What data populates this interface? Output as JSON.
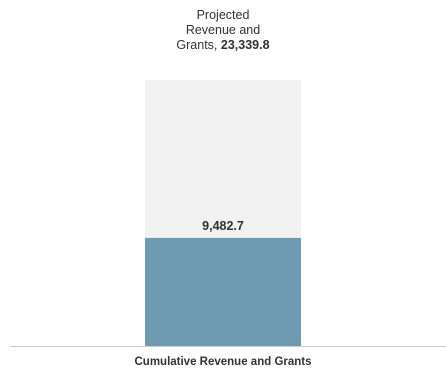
{
  "chart_data": {
    "type": "bar",
    "categories": [
      "Cumulative Revenue and Grants"
    ],
    "series": [
      {
        "name": "Projected Revenue and Grants",
        "values": [
          23339.8
        ]
      },
      {
        "values": [
          9482.7
        ]
      }
    ],
    "projected_label_lines": [
      "Projected",
      "Revenue and",
      "Grants,"
    ],
    "projected_value_text": "23,339.8",
    "actual_value_text": "9,482.7",
    "xlabel": "Cumulative Revenue and Grants",
    "ylim": [
      0,
      23339.8
    ],
    "colors": {
      "projected": "#f1f1f1",
      "actual": "#6e9ab2",
      "axis": "#cccccc"
    }
  }
}
